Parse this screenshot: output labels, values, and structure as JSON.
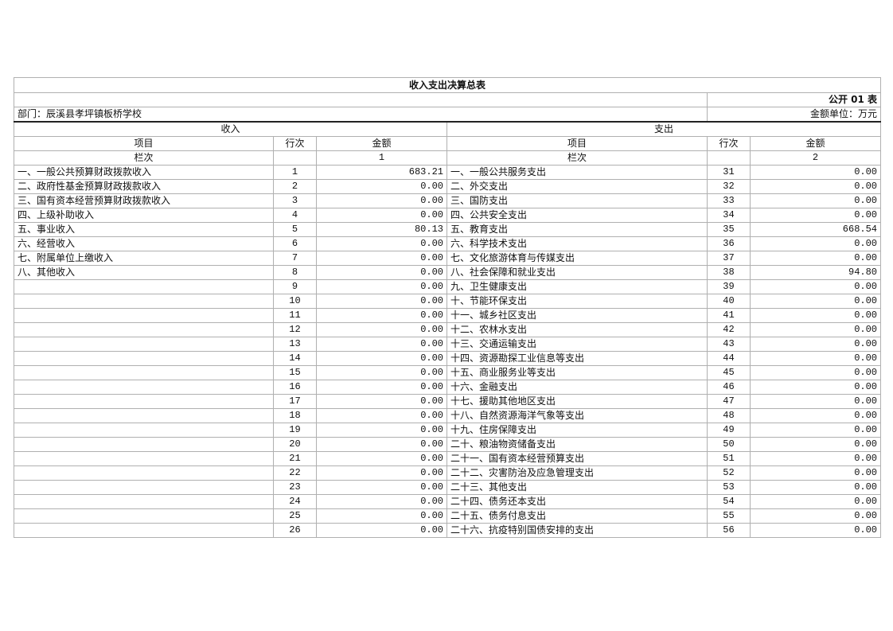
{
  "title": "收入支出决算总表",
  "form_code": "公开 01 表",
  "department": "部门：辰溪县孝坪镇板桥学校",
  "unit": "金额单位：万元",
  "income": {
    "header": "收入",
    "col_item": "项目",
    "col_line": "行次",
    "col_amount": "金额",
    "column_no_label": "栏次",
    "column_no": "1",
    "rows": [
      {
        "item": "一、一般公共预算财政拨款收入",
        "line": "1",
        "amount": "683.21"
      },
      {
        "item": "二、政府性基金预算财政拨款收入",
        "line": "2",
        "amount": "0.00"
      },
      {
        "item": "三、国有资本经营预算财政拨款收入",
        "line": "3",
        "amount": "0.00"
      },
      {
        "item": "四、上级补助收入",
        "line": "4",
        "amount": "0.00"
      },
      {
        "item": "五、事业收入",
        "line": "5",
        "amount": "80.13"
      },
      {
        "item": "六、经营收入",
        "line": "6",
        "amount": "0.00"
      },
      {
        "item": "七、附属单位上缴收入",
        "line": "7",
        "amount": "0.00"
      },
      {
        "item": "八、其他收入",
        "line": "8",
        "amount": "0.00"
      },
      {
        "item": "",
        "line": "9",
        "amount": "0.00"
      },
      {
        "item": "",
        "line": "10",
        "amount": "0.00"
      },
      {
        "item": "",
        "line": "11",
        "amount": "0.00"
      },
      {
        "item": "",
        "line": "12",
        "amount": "0.00"
      },
      {
        "item": "",
        "line": "13",
        "amount": "0.00"
      },
      {
        "item": "",
        "line": "14",
        "amount": "0.00"
      },
      {
        "item": "",
        "line": "15",
        "amount": "0.00"
      },
      {
        "item": "",
        "line": "16",
        "amount": "0.00"
      },
      {
        "item": "",
        "line": "17",
        "amount": "0.00"
      },
      {
        "item": "",
        "line": "18",
        "amount": "0.00"
      },
      {
        "item": "",
        "line": "19",
        "amount": "0.00"
      },
      {
        "item": "",
        "line": "20",
        "amount": "0.00"
      },
      {
        "item": "",
        "line": "21",
        "amount": "0.00"
      },
      {
        "item": "",
        "line": "22",
        "amount": "0.00"
      },
      {
        "item": "",
        "line": "23",
        "amount": "0.00"
      },
      {
        "item": "",
        "line": "24",
        "amount": "0.00"
      },
      {
        "item": "",
        "line": "25",
        "amount": "0.00"
      },
      {
        "item": "",
        "line": "26",
        "amount": "0.00"
      }
    ]
  },
  "expense": {
    "header": "支出",
    "col_item": "项目",
    "col_line": "行次",
    "col_amount": "金额",
    "column_no_label": "栏次",
    "column_no": "2",
    "rows": [
      {
        "item": "一、一般公共服务支出",
        "line": "31",
        "amount": "0.00"
      },
      {
        "item": "二、外交支出",
        "line": "32",
        "amount": "0.00"
      },
      {
        "item": "三、国防支出",
        "line": "33",
        "amount": "0.00"
      },
      {
        "item": "四、公共安全支出",
        "line": "34",
        "amount": "0.00"
      },
      {
        "item": "五、教育支出",
        "line": "35",
        "amount": "668.54"
      },
      {
        "item": "六、科学技术支出",
        "line": "36",
        "amount": "0.00"
      },
      {
        "item": "七、文化旅游体育与传媒支出",
        "line": "37",
        "amount": "0.00"
      },
      {
        "item": "八、社会保障和就业支出",
        "line": "38",
        "amount": "94.80"
      },
      {
        "item": "九、卫生健康支出",
        "line": "39",
        "amount": "0.00"
      },
      {
        "item": "十、节能环保支出",
        "line": "40",
        "amount": "0.00"
      },
      {
        "item": "十一、城乡社区支出",
        "line": "41",
        "amount": "0.00"
      },
      {
        "item": "十二、农林水支出",
        "line": "42",
        "amount": "0.00"
      },
      {
        "item": "十三、交通运输支出",
        "line": "43",
        "amount": "0.00"
      },
      {
        "item": "十四、资源勘探工业信息等支出",
        "line": "44",
        "amount": "0.00"
      },
      {
        "item": "十五、商业服务业等支出",
        "line": "45",
        "amount": "0.00"
      },
      {
        "item": "十六、金融支出",
        "line": "46",
        "amount": "0.00"
      },
      {
        "item": "十七、援助其他地区支出",
        "line": "47",
        "amount": "0.00"
      },
      {
        "item": "十八、自然资源海洋气象等支出",
        "line": "48",
        "amount": "0.00"
      },
      {
        "item": "十九、住房保障支出",
        "line": "49",
        "amount": "0.00"
      },
      {
        "item": "二十、粮油物资储备支出",
        "line": "50",
        "amount": "0.00"
      },
      {
        "item": "二十一、国有资本经营预算支出",
        "line": "51",
        "amount": "0.00"
      },
      {
        "item": "二十二、灾害防治及应急管理支出",
        "line": "52",
        "amount": "0.00"
      },
      {
        "item": "二十三、其他支出",
        "line": "53",
        "amount": "0.00"
      },
      {
        "item": "二十四、债务还本支出",
        "line": "54",
        "amount": "0.00"
      },
      {
        "item": "二十五、债务付息支出",
        "line": "55",
        "amount": "0.00"
      },
      {
        "item": "二十六、抗疫特别国债安排的支出",
        "line": "56",
        "amount": "0.00"
      }
    ]
  }
}
